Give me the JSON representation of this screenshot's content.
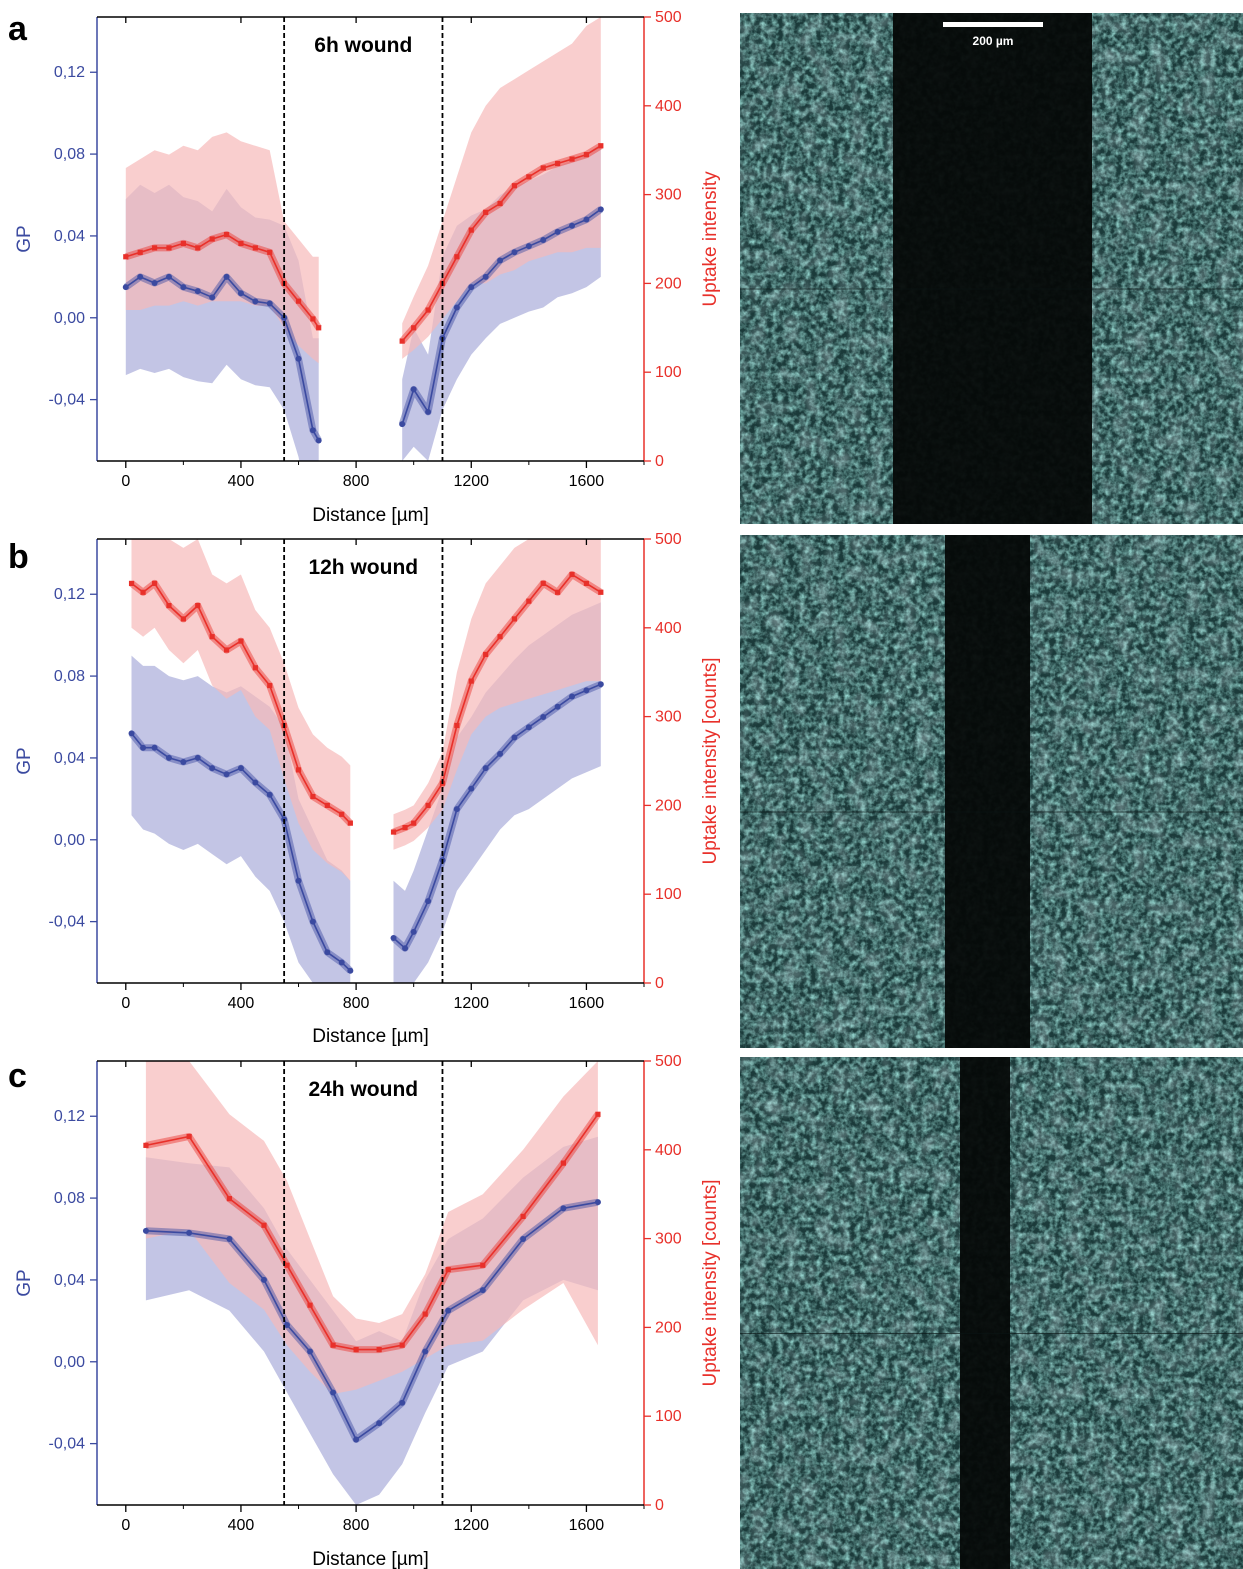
{
  "colors": {
    "gp": "#3b4aa0",
    "uptake": "#e8302a",
    "gp_band": "#b8bbe0",
    "uptake_band": "#f7b9b9"
  },
  "chart_data": [
    {
      "type": "line",
      "panel_label": "a",
      "title": "6h wound",
      "xlabel": "Distance [µm]",
      "ylabel_left": "GP",
      "ylabel_right": "Uptake intensity",
      "xlim": [
        -100,
        1800
      ],
      "ylim_left": [
        -0.07,
        0.147
      ],
      "ylim_right": [
        0,
        500
      ],
      "x_ticks": [
        "0",
        "400",
        "800",
        "1200",
        "1600"
      ],
      "y_ticks_left": [
        "-0,04",
        "0,00",
        "0,04",
        "0,08",
        "0,12"
      ],
      "y_ticks_right": [
        "0",
        "100",
        "200",
        "300",
        "400",
        "500"
      ],
      "wound_edges": [
        550,
        1100
      ],
      "series": [
        {
          "name": "GP",
          "axis": "left",
          "segments": [
            {
              "x": [
                0,
                50,
                100,
                150,
                200,
                250,
                300,
                350,
                400,
                450,
                500,
                550,
                600,
                650,
                670
              ],
              "y": [
                0.015,
                0.02,
                0.017,
                0.02,
                0.015,
                0.013,
                0.01,
                0.02,
                0.012,
                0.008,
                0.007,
                0.0,
                -0.02,
                -0.055,
                -0.06
              ],
              "lo": [
                -0.028,
                -0.025,
                -0.027,
                -0.025,
                -0.029,
                -0.031,
                -0.032,
                -0.023,
                -0.03,
                -0.033,
                -0.034,
                -0.045,
                -0.068,
                -0.1,
                -0.11
              ],
              "hi": [
                0.058,
                0.065,
                0.061,
                0.065,
                0.059,
                0.057,
                0.052,
                0.063,
                0.054,
                0.049,
                0.048,
                0.045,
                0.028,
                -0.01,
                -0.01
              ]
            },
            {
              "x": [
                960,
                1000,
                1050,
                1100,
                1150,
                1200,
                1250,
                1300,
                1350,
                1400,
                1450,
                1500,
                1550,
                1600,
                1650
              ],
              "y": [
                -0.052,
                -0.035,
                -0.046,
                -0.01,
                0.005,
                0.015,
                0.02,
                0.028,
                0.032,
                0.035,
                0.038,
                0.042,
                0.045,
                0.048,
                0.053
              ],
              "lo": [
                -0.07,
                -0.063,
                -0.07,
                -0.045,
                -0.03,
                -0.018,
                -0.01,
                -0.003,
                0.0,
                0.003,
                0.005,
                0.01,
                0.012,
                0.015,
                0.02
              ],
              "hi": [
                -0.03,
                -0.005,
                -0.018,
                0.03,
                0.045,
                0.05,
                0.053,
                0.06,
                0.064,
                0.067,
                0.07,
                0.074,
                0.077,
                0.08,
                0.085
              ]
            }
          ]
        },
        {
          "name": "Uptake",
          "axis": "right",
          "segments": [
            {
              "x": [
                0,
                50,
                100,
                150,
                200,
                250,
                300,
                350,
                400,
                450,
                500,
                550,
                600,
                650,
                670
              ],
              "y": [
                230,
                235,
                240,
                240,
                245,
                240,
                250,
                255,
                245,
                240,
                235,
                200,
                180,
                160,
                150
              ],
              "lo": [
                170,
                170,
                175,
                175,
                180,
                175,
                180,
                180,
                180,
                175,
                175,
                150,
                130,
                115,
                110
              ],
              "hi": [
                330,
                340,
                350,
                345,
                355,
                350,
                365,
                370,
                360,
                355,
                350,
                270,
                250,
                230,
                230
              ]
            },
            {
              "x": [
                960,
                1000,
                1050,
                1100,
                1150,
                1200,
                1250,
                1300,
                1350,
                1400,
                1450,
                1500,
                1550,
                1600,
                1650
              ],
              "y": [
                135,
                150,
                170,
                200,
                230,
                260,
                280,
                290,
                310,
                320,
                330,
                335,
                340,
                345,
                355
              ],
              "lo": [
                115,
                125,
                140,
                160,
                180,
                200,
                200,
                210,
                215,
                225,
                230,
                235,
                235,
                240,
                240
              ],
              "hi": [
                155,
                185,
                220,
                270,
                320,
                370,
                400,
                420,
                430,
                440,
                450,
                460,
                470,
                490,
                500
              ]
            }
          ]
        }
      ],
      "scale_bar": "200 µm"
    },
    {
      "type": "line",
      "panel_label": "b",
      "title": "12h wound",
      "xlabel": "Distance [µm]",
      "ylabel_left": "GP",
      "ylabel_right": "Uptake intensity [counts]",
      "xlim": [
        -100,
        1800
      ],
      "ylim_left": [
        -0.07,
        0.147
      ],
      "ylim_right": [
        0,
        500
      ],
      "x_ticks": [
        "0",
        "400",
        "800",
        "1200",
        "1600"
      ],
      "y_ticks_left": [
        "-0,04",
        "0,00",
        "0,04",
        "0,08",
        "0,12"
      ],
      "y_ticks_right": [
        "0",
        "100",
        "200",
        "300",
        "400",
        "500"
      ],
      "wound_edges": [
        550,
        1100
      ],
      "series": [
        {
          "name": "GP",
          "axis": "left",
          "segments": [
            {
              "x": [
                20,
                60,
                100,
                150,
                200,
                250,
                300,
                350,
                400,
                450,
                500,
                550,
                600,
                650,
                700,
                750,
                780
              ],
              "y": [
                0.052,
                0.045,
                0.045,
                0.04,
                0.038,
                0.04,
                0.035,
                0.032,
                0.035,
                0.028,
                0.022,
                0.01,
                -0.02,
                -0.04,
                -0.055,
                -0.06,
                -0.064
              ],
              "lo": [
                0.012,
                0.005,
                0.003,
                -0.002,
                -0.005,
                -0.002,
                -0.007,
                -0.012,
                -0.008,
                -0.018,
                -0.025,
                -0.04,
                -0.06,
                -0.07,
                -0.07,
                -0.07,
                -0.07
              ],
              "hi": [
                0.09,
                0.085,
                0.085,
                0.08,
                0.078,
                0.08,
                0.075,
                0.072,
                0.075,
                0.07,
                0.065,
                0.055,
                0.02,
                0.005,
                -0.01,
                -0.015,
                -0.02
              ]
            },
            {
              "x": [
                930,
                970,
                1000,
                1050,
                1100,
                1150,
                1200,
                1250,
                1300,
                1350,
                1400,
                1450,
                1500,
                1550,
                1600,
                1650
              ],
              "y": [
                -0.048,
                -0.053,
                -0.045,
                -0.03,
                -0.01,
                0.015,
                0.025,
                0.035,
                0.042,
                0.05,
                0.055,
                0.06,
                0.065,
                0.07,
                0.073,
                0.076
              ],
              "lo": [
                -0.07,
                -0.07,
                -0.07,
                -0.06,
                -0.045,
                -0.025,
                -0.015,
                -0.005,
                0.005,
                0.012,
                0.015,
                0.02,
                0.025,
                0.03,
                0.033,
                0.036
              ],
              "hi": [
                -0.02,
                -0.025,
                -0.015,
                0.005,
                0.025,
                0.05,
                0.06,
                0.072,
                0.08,
                0.088,
                0.095,
                0.1,
                0.105,
                0.11,
                0.113,
                0.116
              ]
            }
          ]
        },
        {
          "name": "Uptake",
          "axis": "right",
          "segments": [
            {
              "x": [
                20,
                60,
                100,
                150,
                200,
                250,
                300,
                350,
                400,
                450,
                500,
                550,
                600,
                650,
                700,
                750,
                780
              ],
              "y": [
                450,
                440,
                450,
                425,
                410,
                425,
                390,
                375,
                385,
                355,
                335,
                290,
                240,
                210,
                200,
                190,
                180
              ],
              "lo": [
                400,
                390,
                400,
                375,
                360,
                375,
                335,
                320,
                330,
                300,
                285,
                230,
                180,
                150,
                135,
                125,
                115
              ],
              "hi": [
                500,
                500,
                500,
                500,
                490,
                500,
                460,
                450,
                460,
                420,
                400,
                360,
                310,
                280,
                265,
                255,
                245
              ]
            },
            {
              "x": [
                930,
                970,
                1000,
                1050,
                1100,
                1150,
                1200,
                1250,
                1300,
                1350,
                1400,
                1450,
                1500,
                1550,
                1600,
                1650
              ],
              "y": [
                170,
                175,
                180,
                200,
                225,
                290,
                340,
                370,
                390,
                410,
                430,
                450,
                440,
                460,
                450,
                440
              ],
              "lo": [
                150,
                155,
                160,
                175,
                195,
                240,
                280,
                300,
                310,
                315,
                320,
                325,
                330,
                335,
                340,
                340
              ],
              "hi": [
                190,
                195,
                200,
                225,
                260,
                350,
                410,
                450,
                470,
                490,
                500,
                500,
                500,
                500,
                500,
                500
              ]
            }
          ]
        }
      ]
    },
    {
      "type": "line",
      "panel_label": "c",
      "title": "24h wound",
      "xlabel": "Distance [µm]",
      "ylabel_left": "GP",
      "ylabel_right": "Uptake intensity [counts]",
      "xlim": [
        -100,
        1800
      ],
      "ylim_left": [
        -0.07,
        0.147
      ],
      "ylim_right": [
        0,
        500
      ],
      "x_ticks": [
        "0",
        "400",
        "800",
        "1200",
        "1600"
      ],
      "y_ticks_left": [
        "-0,04",
        "0,00",
        "0,04",
        "0,08",
        "0,12"
      ],
      "y_ticks_right": [
        "0",
        "100",
        "200",
        "300",
        "400",
        "500"
      ],
      "wound_edges": [
        550,
        1100
      ],
      "series": [
        {
          "name": "GP",
          "axis": "left",
          "segments": [
            {
              "x": [
                70,
                220,
                360,
                480,
                560,
                640,
                720,
                800,
                880,
                960,
                1040,
                1120,
                1240,
                1380,
                1520,
                1640
              ],
              "y": [
                0.064,
                0.063,
                0.06,
                0.04,
                0.018,
                0.005,
                -0.015,
                -0.038,
                -0.03,
                -0.02,
                0.005,
                0.025,
                0.035,
                0.06,
                0.075,
                0.078
              ],
              "lo": [
                0.03,
                0.035,
                0.025,
                0.005,
                -0.015,
                -0.035,
                -0.055,
                -0.07,
                -0.065,
                -0.05,
                -0.025,
                -0.002,
                0.005,
                0.03,
                0.04,
                0.035
              ],
              "hi": [
                0.1,
                0.097,
                0.095,
                0.075,
                0.055,
                0.04,
                0.025,
                0.01,
                0.015,
                0.01,
                0.04,
                0.06,
                0.07,
                0.09,
                0.105,
                0.11
              ]
            }
          ]
        },
        {
          "name": "Uptake",
          "axis": "right",
          "segments": [
            {
              "x": [
                70,
                220,
                360,
                480,
                560,
                640,
                720,
                800,
                880,
                960,
                1040,
                1120,
                1240,
                1380,
                1520,
                1640
              ],
              "y": [
                405,
                415,
                345,
                315,
                270,
                225,
                180,
                175,
                175,
                180,
                215,
                265,
                270,
                325,
                385,
                440
              ],
              "lo": [
                300,
                310,
                250,
                220,
                180,
                150,
                125,
                130,
                140,
                150,
                165,
                180,
                185,
                220,
                250,
                180
              ],
              "hi": [
                500,
                500,
                440,
                410,
                365,
                300,
                235,
                210,
                205,
                215,
                260,
                330,
                350,
                400,
                460,
                500
              ]
            }
          ]
        }
      ]
    }
  ]
}
